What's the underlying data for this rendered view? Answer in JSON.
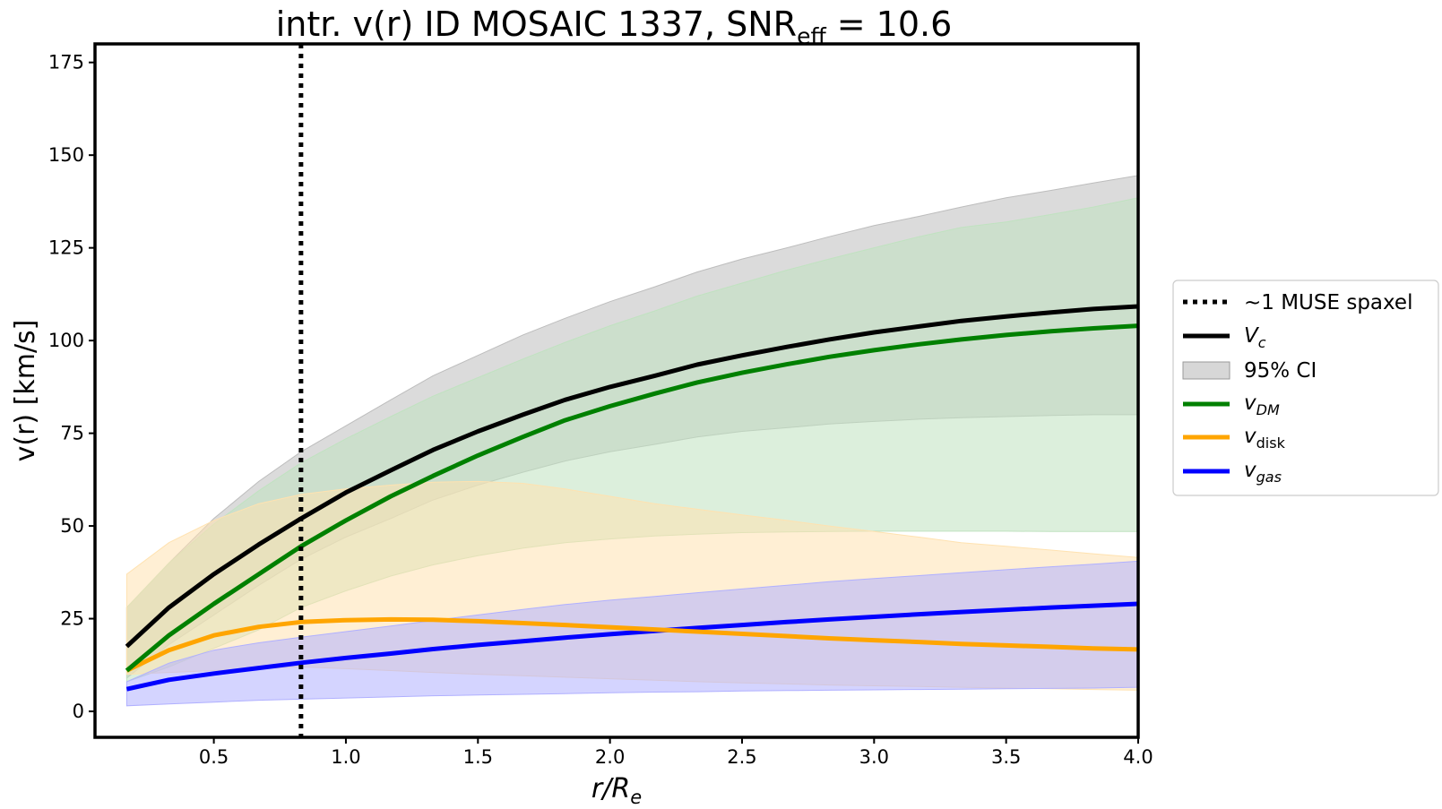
{
  "chart_data": {
    "type": "line",
    "title_main": "intr. v(r) ID MOSAIC 1337, SNR",
    "title_sub": "eff",
    "title_tail": " = 10.6",
    "xlabel": "r/R",
    "xlabel_sub": "e",
    "ylabel": "v(r) [km/s]",
    "xlim": [
      0.05,
      4.0
    ],
    "ylim": [
      -7,
      180
    ],
    "xticks": [
      0.5,
      1.0,
      1.5,
      2.0,
      2.5,
      3.0,
      3.5,
      4.0
    ],
    "xtick_labels": [
      "0.5",
      "1.0",
      "1.5",
      "2.0",
      "2.5",
      "3.0",
      "3.5",
      "4.0"
    ],
    "yticks": [
      0,
      25,
      50,
      75,
      100,
      125,
      150,
      175
    ],
    "ytick_labels": [
      "0",
      "25",
      "50",
      "75",
      "100",
      "125",
      "150",
      "175"
    ],
    "grid": false,
    "legend_position": "outside-right",
    "vline": {
      "x": 0.83,
      "label": "~1 MUSE spaxel"
    },
    "x": [
      0.17,
      0.33,
      0.5,
      0.67,
      0.83,
      1.0,
      1.17,
      1.33,
      1.5,
      1.67,
      1.83,
      2.0,
      2.17,
      2.33,
      2.5,
      2.67,
      2.83,
      3.0,
      3.17,
      3.33,
      3.5,
      3.67,
      3.83,
      4.0
    ],
    "series": [
      {
        "key": "vc",
        "legend": "V",
        "legend_sub": "c",
        "color": "#000000",
        "values": [
          17.5,
          28,
          37,
          45,
          52,
          59,
          65,
          70.5,
          75.5,
          80,
          84,
          87.5,
          90.5,
          93.5,
          96,
          98.3,
          100.3,
          102.2,
          103.8,
          105.3,
          106.5,
          107.6,
          108.5,
          109.2
        ],
        "band_color": "#bdbdbd",
        "band_label": "95% CI",
        "lower": [
          9,
          18,
          26,
          34,
          41,
          47,
          52,
          57,
          61,
          64.5,
          67.5,
          70,
          72,
          74,
          75.5,
          76.5,
          77.5,
          78.2,
          78.8,
          79.2,
          79.5,
          79.8,
          80,
          80
        ],
        "upper": [
          28,
          40,
          52,
          62,
          70,
          77,
          84,
          90.5,
          96,
          101.5,
          106,
          110.5,
          114.5,
          118.5,
          122,
          125,
          128,
          131,
          133.5,
          136,
          138.5,
          140.5,
          142.5,
          144.5
        ]
      },
      {
        "key": "vdm",
        "legend": "v",
        "legend_sub": "DM",
        "color": "#008000",
        "values": [
          11,
          20.5,
          29,
          37,
          44.5,
          51.5,
          58,
          63.5,
          69,
          74,
          78.5,
          82.3,
          85.7,
          88.7,
          91.3,
          93.6,
          95.6,
          97.4,
          99,
          100.3,
          101.5,
          102.5,
          103.3,
          104
        ],
        "band_color": "#c0e2c0",
        "lower": [
          8,
          12,
          17,
          22,
          28,
          32.5,
          36.5,
          39.5,
          42,
          44,
          45.5,
          46.5,
          47.3,
          47.8,
          48.2,
          48.4,
          48.5,
          48.6,
          48.6,
          48.6,
          48.6,
          48.5,
          48.5,
          48.5
        ],
        "upper": [
          28,
          40,
          50.5,
          59.5,
          67,
          73.5,
          79.5,
          85,
          90,
          95,
          99.5,
          104,
          108,
          112,
          115.5,
          119,
          122,
          125,
          128,
          130.5,
          132,
          134,
          136,
          138.5
        ]
      },
      {
        "key": "vdisk",
        "legend": "v",
        "legend_sub": "disk",
        "color": "#ffa500",
        "values": [
          11,
          16.5,
          20.5,
          22.8,
          24.1,
          24.6,
          24.8,
          24.7,
          24.3,
          23.8,
          23.3,
          22.7,
          22.1,
          21.5,
          20.9,
          20.3,
          19.7,
          19.2,
          18.7,
          18.2,
          17.8,
          17.4,
          17,
          16.7
        ],
        "band_color": "#ffe2b0",
        "lower": [
          10,
          10.5,
          11,
          11.5,
          12,
          11.5,
          11,
          10.5,
          10,
          9.6,
          9.2,
          8.8,
          8.4,
          8,
          7.7,
          7.4,
          7.1,
          6.9,
          6.7,
          6.5,
          6.3,
          6.1,
          5.9,
          5.7
        ],
        "upper": [
          37,
          45.5,
          51.5,
          56,
          58.5,
          60,
          61,
          61.8,
          62,
          61.5,
          60,
          58,
          56,
          54.5,
          53,
          51.5,
          50,
          48.5,
          47,
          45.5,
          44.5,
          43.5,
          42.5,
          41.5
        ]
      },
      {
        "key": "vgas",
        "legend": "v",
        "legend_sub": "gas",
        "color": "#0000ff",
        "values": [
          6,
          8.5,
          10.2,
          11.7,
          13.1,
          14.4,
          15.6,
          16.8,
          17.9,
          18.9,
          19.9,
          20.8,
          21.7,
          22.5,
          23.3,
          24.1,
          24.8,
          25.5,
          26.2,
          26.8,
          27.4,
          28,
          28.5,
          29
        ],
        "band_color": "#b0b0ff",
        "lower": [
          1.5,
          2,
          2.5,
          3,
          3.3,
          3.6,
          3.9,
          4.2,
          4.4,
          4.6,
          4.8,
          5,
          5.2,
          5.3,
          5.5,
          5.6,
          5.7,
          5.8,
          5.9,
          6,
          6.1,
          6.2,
          6.3,
          6.5
        ],
        "upper": [
          8,
          13,
          16.5,
          18.5,
          20,
          21.5,
          23,
          24.5,
          26,
          27.5,
          28.8,
          30,
          31,
          32,
          33,
          34,
          35,
          35.8,
          36.6,
          37.4,
          38.2,
          39,
          39.7,
          40.5
        ]
      }
    ]
  }
}
